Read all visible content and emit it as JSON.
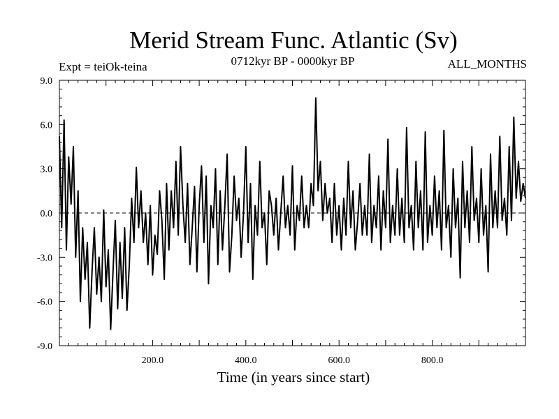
{
  "chart_data": {
    "type": "line",
    "title": "Merid Stream Func. Atlantic (Sv)",
    "subtitle_left": "Expt = teiOk-teina",
    "subtitle_center": "0712kyr BP - 0000kyr BP",
    "subtitle_right": "ALL_MONTHS",
    "xlabel": "Time (in years since start)",
    "ylabel": "",
    "xlim": [
      0,
      1000
    ],
    "ylim": [
      -9.0,
      9.0
    ],
    "xticks": [
      200,
      400,
      600,
      800
    ],
    "xtick_labels": [
      "200.0",
      "400.0",
      "600.0",
      "800.0"
    ],
    "yticks": [
      -9,
      -6,
      -3,
      0,
      3,
      6,
      9
    ],
    "ytick_labels": [
      "-9.0",
      "-6.0",
      "-3.0",
      "0.0",
      "3.0",
      "6.0",
      "9.0"
    ],
    "reference_line": 0,
    "series": [
      {
        "name": "Merid Stream Func. Atlantic",
        "x": [
          0,
          5,
          10,
          15,
          20,
          25,
          30,
          35,
          40,
          45,
          50,
          55,
          60,
          65,
          70,
          75,
          80,
          85,
          90,
          95,
          100,
          105,
          110,
          115,
          120,
          125,
          130,
          135,
          140,
          145,
          150,
          155,
          160,
          165,
          170,
          175,
          180,
          185,
          190,
          195,
          200,
          205,
          210,
          215,
          220,
          225,
          230,
          235,
          240,
          245,
          250,
          255,
          260,
          265,
          270,
          275,
          280,
          285,
          290,
          295,
          300,
          305,
          310,
          315,
          320,
          325,
          330,
          335,
          340,
          345,
          350,
          355,
          360,
          365,
          370,
          375,
          380,
          385,
          390,
          395,
          400,
          405,
          410,
          415,
          420,
          425,
          430,
          435,
          440,
          445,
          450,
          455,
          460,
          465,
          470,
          475,
          480,
          485,
          490,
          495,
          500,
          505,
          510,
          515,
          520,
          525,
          530,
          535,
          540,
          545,
          550,
          555,
          560,
          565,
          570,
          575,
          580,
          585,
          590,
          595,
          600,
          605,
          610,
          615,
          620,
          625,
          630,
          635,
          640,
          645,
          650,
          655,
          660,
          665,
          670,
          675,
          680,
          685,
          690,
          695,
          700,
          705,
          710,
          715,
          720,
          725,
          730,
          735,
          740,
          745,
          750,
          755,
          760,
          765,
          770,
          775,
          780,
          785,
          790,
          795,
          800,
          805,
          810,
          815,
          820,
          825,
          830,
          835,
          840,
          845,
          850,
          855,
          860,
          865,
          870,
          875,
          880,
          885,
          890,
          895,
          900,
          905,
          910,
          915,
          920,
          925,
          930,
          935,
          940,
          945,
          950,
          955,
          960,
          965,
          970,
          975,
          980,
          985,
          990,
          995,
          1000
        ],
        "values": [
          5.2,
          -1.0,
          6.3,
          -2.5,
          3.8,
          0.6,
          4.5,
          -3.0,
          1.5,
          -6.0,
          -1.0,
          -4.5,
          -2.0,
          -7.8,
          -4.0,
          -1.0,
          -5.5,
          -3.0,
          -6.0,
          0.2,
          -5.0,
          -2.5,
          -7.9,
          -4.0,
          -0.5,
          -6.5,
          -2.0,
          -5.8,
          -1.0,
          -6.6,
          -3.5,
          1.0,
          -2.0,
          3.1,
          -1.0,
          1.5,
          -2.0,
          0.0,
          -3.5,
          0.5,
          -4.2,
          -1.5,
          -2.8,
          1.5,
          -0.5,
          -4.5,
          2.0,
          -2.5,
          1.5,
          -1.0,
          3.5,
          -1.5,
          4.5,
          0.5,
          -2.0,
          2.0,
          -3.5,
          -1.0,
          1.8,
          -4.0,
          0.5,
          3.2,
          -2.0,
          2.5,
          -4.8,
          0.5,
          -1.0,
          3.0,
          -3.5,
          1.5,
          -2.5,
          0.5,
          4.0,
          -4.0,
          -1.5,
          2.5,
          -0.5,
          1.0,
          -3.0,
          0.0,
          4.5,
          -2.0,
          2.0,
          -4.5,
          0.5,
          -1.5,
          3.5,
          -1.0,
          0.0,
          -3.5,
          1.5,
          0.5,
          -1.5,
          1.0,
          -2.5,
          0.0,
          2.5,
          -1.0,
          0.5,
          -1.5,
          3.2,
          -2.5,
          0.5,
          -0.5,
          2.5,
          -1.0,
          0.5,
          -1.0,
          2.0,
          0.5,
          7.8,
          1.5,
          3.5,
          -0.5,
          2.0,
          0.0,
          1.0,
          -2.0,
          2.0,
          -1.5,
          0.5,
          -2.5,
          1.0,
          -1.5,
          3.5,
          -1.0,
          1.5,
          -2.5,
          -0.5,
          2.0,
          -1.5,
          0.5,
          -1.5,
          4.0,
          -2.0,
          0.5,
          -1.0,
          2.5,
          -2.5,
          1.5,
          -1.0,
          5.0,
          -2.0,
          0.5,
          -1.5,
          3.0,
          -1.5,
          1.0,
          -2.0,
          5.8,
          -1.0,
          0.5,
          -2.5,
          3.5,
          -1.0,
          1.5,
          -2.5,
          5.5,
          -2.0,
          0.5,
          -1.5,
          2.5,
          -1.0,
          1.5,
          -2.5,
          5.6,
          -1.0,
          0.5,
          -3.0,
          3.0,
          -1.0,
          1.0,
          -4.4,
          3.5,
          -1.0,
          1.5,
          -2.0,
          4.5,
          -0.5,
          1.0,
          -2.0,
          3.0,
          -1.5,
          0.5,
          -4.0,
          4.0,
          -1.0,
          1.5,
          -1.0,
          5.2,
          -0.5,
          1.0,
          -1.5,
          4.5,
          -0.5,
          6.5,
          1.0,
          3.5,
          0.8,
          2.0,
          1.0
        ]
      }
    ]
  }
}
